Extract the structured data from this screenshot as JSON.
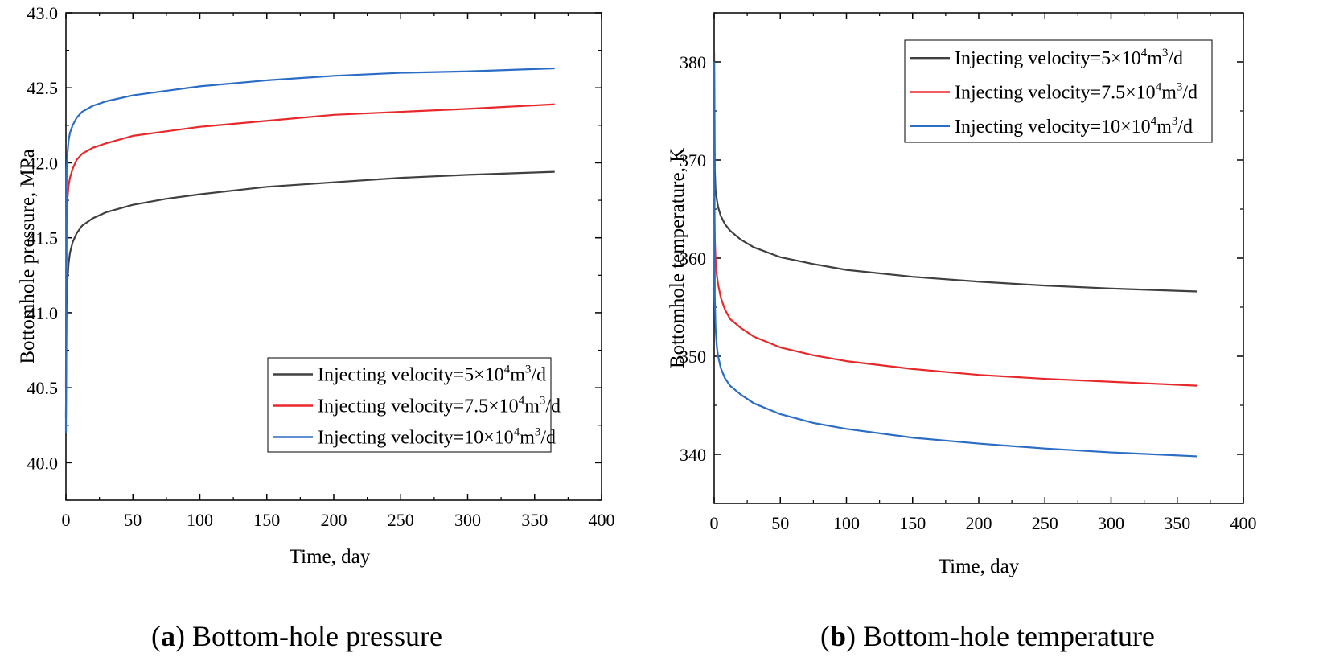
{
  "chart_data": [
    {
      "type": "line",
      "panel": "a",
      "xlabel": "Time, day",
      "ylabel": "Bottomhole pressure, MPa",
      "xlim": [
        0,
        400
      ],
      "ylim": [
        39.75,
        43.0
      ],
      "xticks": [
        0,
        50,
        100,
        150,
        200,
        250,
        300,
        350,
        400
      ],
      "yticks": [
        40.0,
        40.5,
        41.0,
        41.5,
        42.0,
        42.5,
        43.0
      ],
      "legend_position": "bottom-right",
      "series": [
        {
          "name": "Injecting velocity=5×10⁴m³/d",
          "color": "#404040",
          "x": [
            0,
            0.5,
            1,
            2,
            3,
            5,
            8,
            12,
            20,
            30,
            50,
            75,
            100,
            150,
            200,
            250,
            300,
            365
          ],
          "y": [
            40.3,
            41.05,
            41.2,
            41.33,
            41.4,
            41.47,
            41.53,
            41.58,
            41.63,
            41.67,
            41.72,
            41.76,
            41.79,
            41.84,
            41.87,
            41.9,
            41.92,
            41.94
          ]
        },
        {
          "name": "Injecting velocity=7.5×10⁴m³/d",
          "color": "#e8292b",
          "x": [
            0,
            0.5,
            1,
            2,
            3,
            5,
            8,
            12,
            20,
            30,
            50,
            75,
            100,
            150,
            200,
            250,
            300,
            365
          ],
          "y": [
            40.5,
            41.6,
            41.75,
            41.85,
            41.9,
            41.96,
            42.02,
            42.06,
            42.1,
            42.13,
            42.18,
            42.21,
            42.24,
            42.28,
            42.32,
            42.34,
            42.36,
            42.39
          ]
        },
        {
          "name": "Injecting velocity=10×10⁴m³/d",
          "color": "#2b6cc4",
          "x": [
            0,
            0.5,
            1,
            2,
            3,
            5,
            8,
            12,
            20,
            30,
            50,
            75,
            100,
            150,
            200,
            250,
            300,
            365
          ],
          "y": [
            40.2,
            41.95,
            42.05,
            42.15,
            42.2,
            42.25,
            42.3,
            42.34,
            42.38,
            42.41,
            42.45,
            42.48,
            42.51,
            42.55,
            42.58,
            42.6,
            42.61,
            42.63
          ]
        }
      ]
    },
    {
      "type": "line",
      "panel": "b",
      "xlabel": "Time, day",
      "ylabel": "Bottomhole temperature, K",
      "xlim": [
        0,
        400
      ],
      "ylim": [
        335,
        385
      ],
      "xticks": [
        0,
        50,
        100,
        150,
        200,
        250,
        300,
        350,
        400
      ],
      "xtick_labels": [
        "0",
        "50",
        "100",
        "150",
        "200",
        "250",
        "300",
        "350",
        "400"
      ],
      "yticks": [
        340,
        350,
        360,
        370,
        380
      ],
      "legend_position": "top-right",
      "series": [
        {
          "name": "Injecting velocity=5×10⁴m³/d",
          "color": "#404040",
          "x": [
            0,
            0.5,
            1,
            2,
            3,
            5,
            8,
            12,
            20,
            30,
            50,
            75,
            100,
            150,
            200,
            250,
            300,
            365
          ],
          "y": [
            381,
            369,
            367,
            366,
            365.2,
            364.3,
            363.5,
            362.8,
            361.9,
            361.1,
            360.1,
            359.4,
            358.8,
            358.1,
            357.6,
            357.2,
            356.9,
            356.6
          ]
        },
        {
          "name": "Injecting velocity=7.5×10⁴m³/d",
          "color": "#e8292b",
          "x": [
            0,
            0.5,
            1,
            2,
            3,
            5,
            8,
            12,
            20,
            30,
            50,
            75,
            100,
            150,
            200,
            250,
            300,
            365
          ],
          "y": [
            366,
            362,
            360,
            358.3,
            357.3,
            356,
            354.8,
            353.8,
            352.9,
            352,
            350.9,
            350.1,
            349.5,
            348.7,
            348.1,
            347.7,
            347.4,
            347
          ]
        },
        {
          "name": "Injecting velocity=10×10⁴m³/d",
          "color": "#2b6cc4",
          "x": [
            0,
            0.5,
            1,
            2,
            3,
            5,
            8,
            12,
            20,
            30,
            50,
            75,
            100,
            150,
            200,
            250,
            300,
            365
          ],
          "y": [
            380,
            356,
            353,
            351,
            350,
            348.8,
            347.8,
            347,
            346.1,
            345.2,
            344.1,
            343.2,
            342.6,
            341.7,
            341.1,
            340.6,
            340.2,
            339.8
          ]
        }
      ]
    }
  ],
  "legend_labels": [
    {
      "prefix": "Injecting velocity=5×10",
      "exp1": "4",
      "mid": "m",
      "exp2": "3",
      "suffix": "/d"
    },
    {
      "prefix": "Injecting velocity=7.5×10",
      "exp1": "4",
      "mid": "m",
      "exp2": "3",
      "suffix": "/d"
    },
    {
      "prefix": "Injecting velocity=10×10",
      "exp1": "4",
      "mid": "m",
      "exp2": "3",
      "suffix": "/d"
    }
  ],
  "captions": {
    "a": {
      "letter": "a",
      "text": " Bottom-hole pressure"
    },
    "b": {
      "letter": "b",
      "text": " Bottom-hole temperature"
    }
  }
}
